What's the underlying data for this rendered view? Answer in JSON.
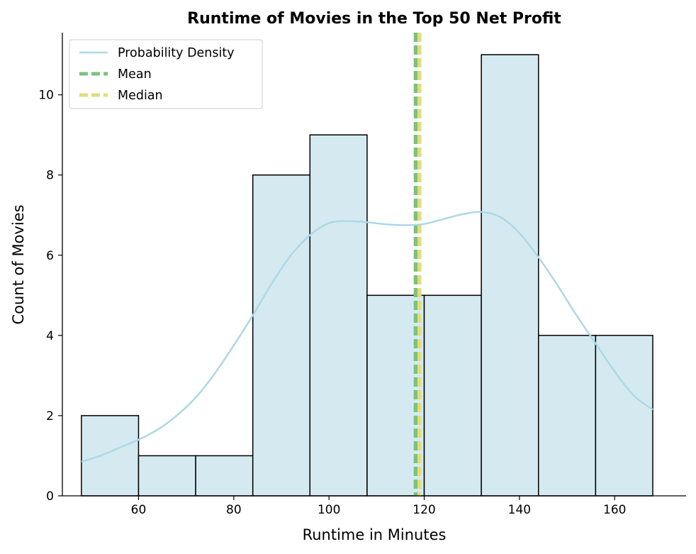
{
  "chart_data": {
    "type": "bar",
    "title": "Runtime of Movies in the Top 50 Net Profit",
    "xlabel": "Runtime in Minutes",
    "ylabel": "Count of Movies",
    "xlim": [
      44,
      175
    ],
    "ylim": [
      0,
      11.55
    ],
    "xticks": [
      60,
      80,
      100,
      120,
      140,
      160
    ],
    "yticks": [
      0,
      2,
      4,
      6,
      8,
      10
    ],
    "bins": [
      {
        "start": 48,
        "end": 60,
        "count": 2
      },
      {
        "start": 60,
        "end": 72,
        "count": 1
      },
      {
        "start": 72,
        "end": 84,
        "count": 1
      },
      {
        "start": 84,
        "end": 96,
        "count": 8
      },
      {
        "start": 96,
        "end": 108,
        "count": 9
      },
      {
        "start": 108,
        "end": 120,
        "count": 5
      },
      {
        "start": 120,
        "end": 132,
        "count": 5
      },
      {
        "start": 132,
        "end": 144,
        "count": 11
      },
      {
        "start": 144,
        "end": 156,
        "count": 4
      },
      {
        "start": 156,
        "end": 168,
        "count": 4
      }
    ],
    "series": [
      {
        "name": "Probability Density",
        "type": "line",
        "x": [
          48,
          52,
          56,
          60,
          64,
          68,
          72,
          76,
          80,
          84,
          88,
          92,
          96,
          100,
          104,
          108,
          112,
          116,
          120,
          124,
          128,
          132,
          136,
          140,
          144,
          148,
          152,
          156,
          160,
          164,
          168
        ],
        "y": [
          0.85,
          1.0,
          1.2,
          1.4,
          1.65,
          2.0,
          2.45,
          3.05,
          3.75,
          4.5,
          5.3,
          6.0,
          6.5,
          6.8,
          6.85,
          6.82,
          6.77,
          6.75,
          6.78,
          6.9,
          7.02,
          7.08,
          6.95,
          6.55,
          5.95,
          5.25,
          4.5,
          3.8,
          3.1,
          2.5,
          2.15
        ]
      },
      {
        "name": "Mean",
        "type": "vline",
        "x": 118.2
      },
      {
        "name": "Median",
        "type": "vline",
        "x": 119.0
      }
    ],
    "legend": {
      "position": "top-left",
      "entries": [
        "Probability Density",
        "Mean",
        "Median"
      ]
    },
    "colors": {
      "bar_fill": "#d4eaf0",
      "bar_edge": "#000000",
      "density": "#add8e6",
      "mean": "#7fc07f",
      "median": "#e0de7a"
    }
  }
}
